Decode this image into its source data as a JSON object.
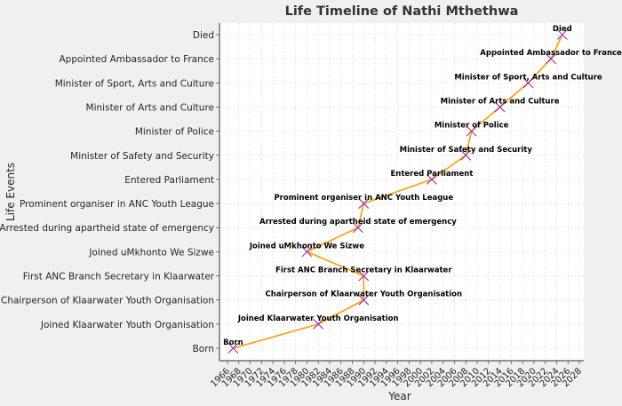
{
  "chart_data": {
    "type": "line",
    "title": "Life Timeline of Nathi Mthethwa",
    "xlabel": "Year",
    "ylabel": "Life Events",
    "xlim": [
      1965,
      2029
    ],
    "xticks": [
      1966,
      1968,
      1970,
      1972,
      1974,
      1976,
      1978,
      1980,
      1982,
      1984,
      1986,
      1988,
      1990,
      1992,
      1994,
      1996,
      1998,
      2000,
      2002,
      2004,
      2006,
      2008,
      2010,
      2012,
      2014,
      2016,
      2018,
      2020,
      2022,
      2024,
      2026,
      2028
    ],
    "grid": true,
    "line_color": "#f5a623",
    "marker_color": "#9b3ea0",
    "marker": "x",
    "categories": [
      "Born",
      "Joined Klaarwater Youth Organisation",
      "Chairperson of Klaarwater Youth Organisation",
      "First ANC Branch Secretary in Klaarwater",
      "Joined uMkhonto We Sizwe",
      "Arrested during apartheid state of emergency",
      "Prominent organiser in ANC Youth League",
      "Entered Parliament",
      "Minister of Safety and Security",
      "Minister of Police",
      "Minister of Arts and Culture",
      "Minister of Sport, Arts and Culture",
      "Appointed Ambassador to France",
      "Died"
    ],
    "points": [
      {
        "event": "Born",
        "year": 1967
      },
      {
        "event": "Joined Klaarwater Youth Organisation",
        "year": 1982
      },
      {
        "event": "Chairperson of Klaarwater Youth Organisation",
        "year": 1990
      },
      {
        "event": "First ANC Branch Secretary in Klaarwater",
        "year": 1990
      },
      {
        "event": "Joined uMkhonto We Sizwe",
        "year": 1980
      },
      {
        "event": "Arrested during apartheid state of emergency",
        "year": 1989
      },
      {
        "event": "Prominent organiser in ANC Youth League",
        "year": 1990
      },
      {
        "event": "Entered Parliament",
        "year": 2002
      },
      {
        "event": "Minister of Safety and Security",
        "year": 2008
      },
      {
        "event": "Minister of Police",
        "year": 2009
      },
      {
        "event": "Minister of Arts and Culture",
        "year": 2014
      },
      {
        "event": "Minister of Sport, Arts and Culture",
        "year": 2019
      },
      {
        "event": "Appointed Ambassador to France",
        "year": 2023
      },
      {
        "event": "Died",
        "year": 2025
      }
    ]
  }
}
